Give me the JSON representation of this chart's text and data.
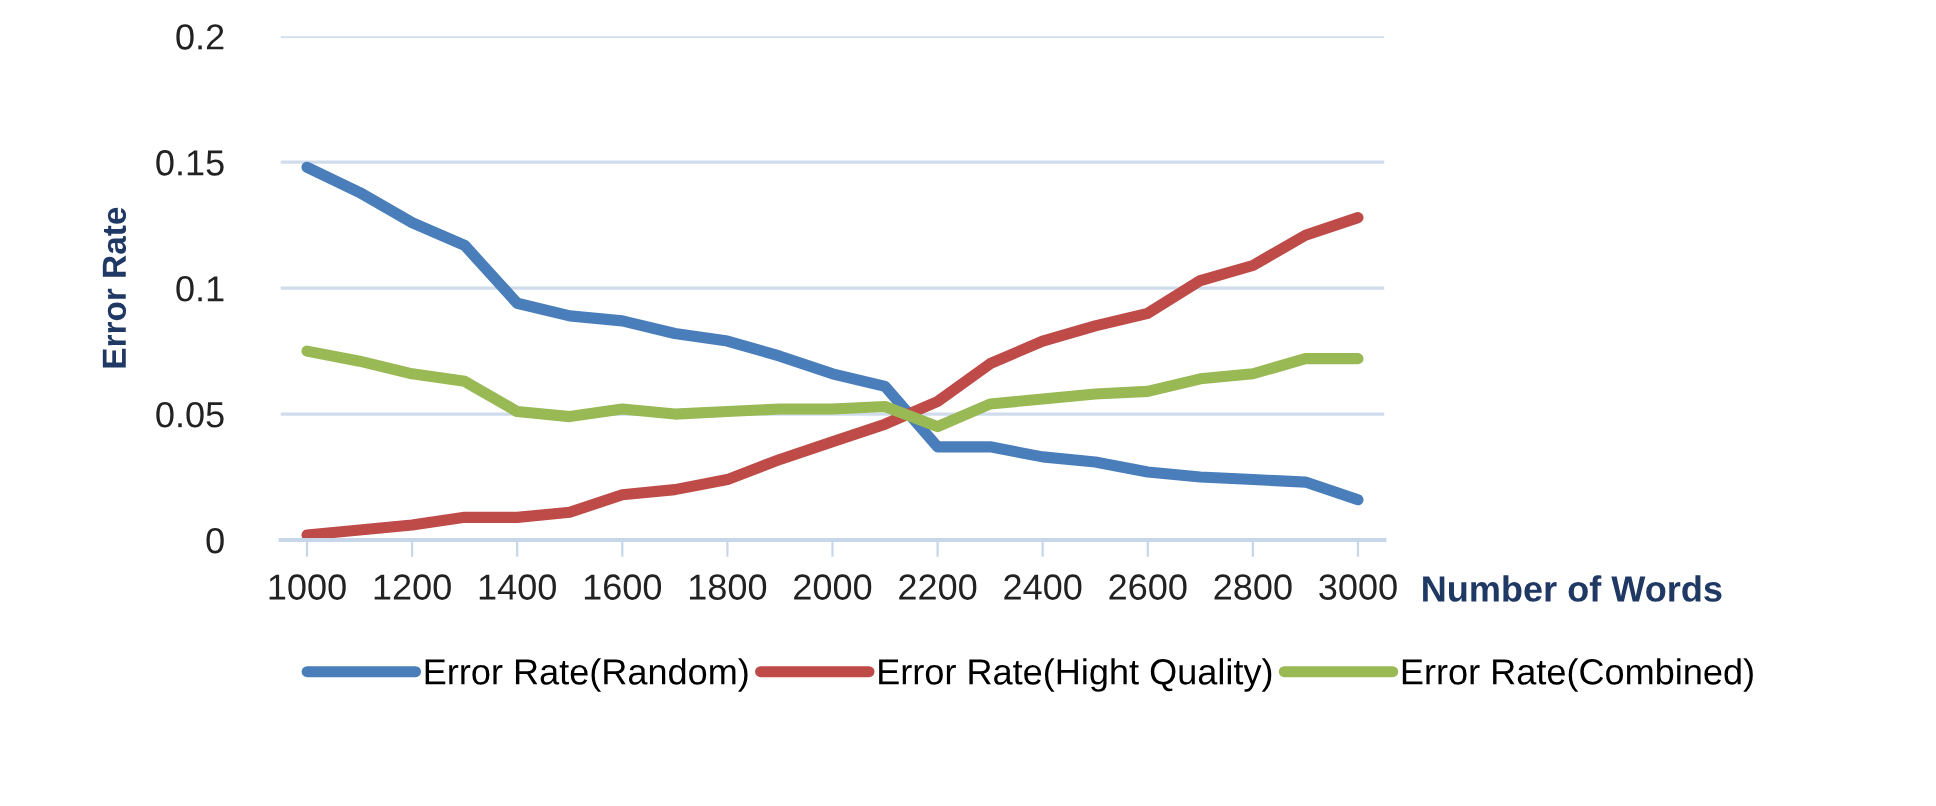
{
  "chart_data": {
    "type": "line",
    "xlabel": "Number of Words",
    "ylabel": "Error Rate",
    "x": [
      1000,
      1100,
      1200,
      1300,
      1400,
      1500,
      1600,
      1700,
      1800,
      1900,
      2000,
      2100,
      2200,
      2300,
      2400,
      2500,
      2600,
      2700,
      2800,
      2900,
      3000
    ],
    "series": [
      {
        "name": "Error Rate(Random)",
        "color": "#4a7ebb",
        "values": [
          0.148,
          0.138,
          0.126,
          0.117,
          0.094,
          0.089,
          0.087,
          0.082,
          0.079,
          0.073,
          0.066,
          0.061,
          0.037,
          0.037,
          0.033,
          0.031,
          0.027,
          0.025,
          0.024,
          0.023,
          0.016
        ]
      },
      {
        "name": "Error Rate(Hight Quality)",
        "color": "#be4b48",
        "values": [
          0.002,
          0.004,
          0.006,
          0.009,
          0.009,
          0.011,
          0.018,
          0.02,
          0.024,
          0.032,
          0.039,
          0.046,
          0.055,
          0.07,
          0.079,
          0.085,
          0.09,
          0.103,
          0.109,
          0.121,
          0.128
        ]
      },
      {
        "name": "Error Rate(Combined)",
        "color": "#98b954",
        "values": [
          0.075,
          0.071,
          0.066,
          0.063,
          0.051,
          0.049,
          0.052,
          0.05,
          0.051,
          0.052,
          0.052,
          0.053,
          0.045,
          0.054,
          0.056,
          0.058,
          0.059,
          0.064,
          0.066,
          0.072,
          0.072
        ]
      }
    ],
    "xlim": [
      950,
      3050
    ],
    "xticks": [
      1000,
      1200,
      1400,
      1600,
      1800,
      2000,
      2200,
      2400,
      2600,
      2800,
      3000
    ],
    "ylim": [
      0,
      0.2
    ],
    "yticks": [
      0,
      0.05,
      0.1,
      0.15,
      0.2
    ],
    "grid": "y",
    "legend": "bottom",
    "marker": "none",
    "line_style": "solid"
  }
}
